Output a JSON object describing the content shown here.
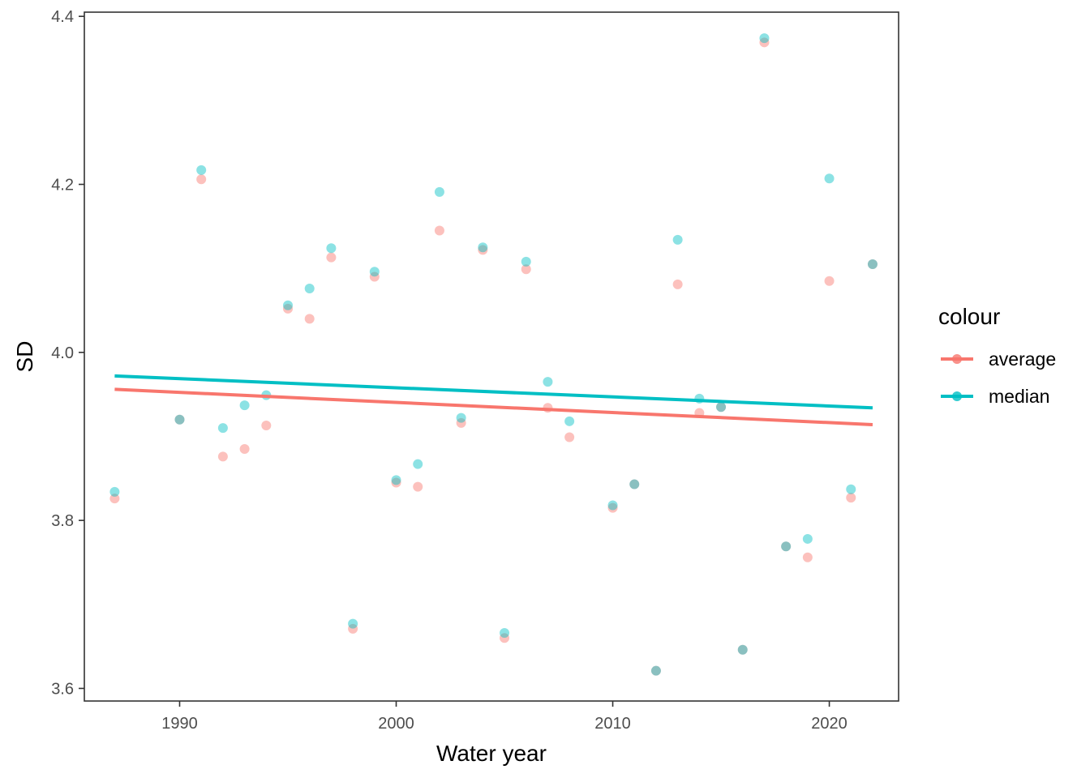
{
  "chart_data": {
    "type": "scatter",
    "title": "",
    "xlabel": "Water year",
    "ylabel": "SD",
    "xlim": [
      1985.6,
      2023.2
    ],
    "ylim": [
      3.585,
      4.405
    ],
    "xticks": [
      1990,
      2000,
      2010,
      2020
    ],
    "yticks": [
      3.6,
      3.8,
      4.0,
      4.2,
      4.4
    ],
    "ytick_labels": [
      "3.6",
      "3.8",
      "4.0",
      "4.2",
      "4.4"
    ],
    "grid": false,
    "legend": {
      "title": "colour",
      "position": "right"
    },
    "series": [
      {
        "name": "average",
        "color": "#F8766D",
        "x": [
          1987,
          1990,
          1991,
          1992,
          1993,
          1994,
          1995,
          1996,
          1997,
          1998,
          1999,
          2000,
          2001,
          2002,
          2003,
          2004,
          2005,
          2006,
          2007,
          2008,
          2010,
          2011,
          2012,
          2013,
          2014,
          2015,
          2016,
          2017,
          2018,
          2019,
          2020,
          2021,
          2022
        ],
        "y": [
          3.826,
          3.92,
          4.206,
          3.876,
          3.885,
          3.913,
          4.052,
          4.04,
          4.113,
          3.671,
          4.09,
          3.845,
          3.84,
          4.145,
          3.916,
          4.122,
          3.66,
          4.099,
          3.934,
          3.899,
          3.815,
          3.843,
          3.621,
          4.081,
          3.928,
          3.935,
          3.646,
          4.369,
          3.769,
          3.756,
          4.085,
          3.827,
          4.105
        ],
        "trend": {
          "x": [
            1987,
            2022
          ],
          "y": [
            3.956,
            3.914
          ]
        }
      },
      {
        "name": "median",
        "color": "#00BFC4",
        "x": [
          1987,
          1990,
          1991,
          1992,
          1993,
          1994,
          1995,
          1996,
          1997,
          1998,
          1999,
          2000,
          2001,
          2002,
          2003,
          2004,
          2005,
          2006,
          2007,
          2008,
          2010,
          2011,
          2012,
          2013,
          2014,
          2015,
          2016,
          2017,
          2018,
          2019,
          2020,
          2021,
          2022
        ],
        "y": [
          3.834,
          3.92,
          4.217,
          3.91,
          3.937,
          3.949,
          4.056,
          4.076,
          4.124,
          3.677,
          4.096,
          3.848,
          3.867,
          4.191,
          3.922,
          4.125,
          3.666,
          4.108,
          3.965,
          3.918,
          3.818,
          3.843,
          3.621,
          4.134,
          3.945,
          3.935,
          3.646,
          4.374,
          3.769,
          3.778,
          4.207,
          3.837,
          4.105
        ],
        "trend": {
          "x": [
            1987,
            2022
          ],
          "y": [
            3.972,
            3.934
          ]
        }
      }
    ]
  }
}
